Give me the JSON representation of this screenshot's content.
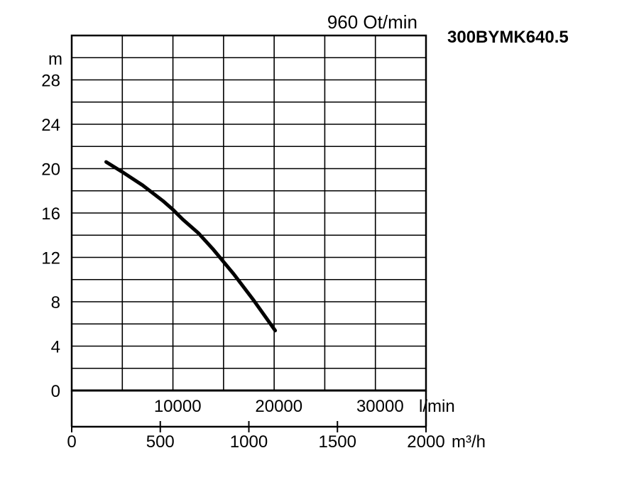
{
  "chart_data": {
    "type": "line",
    "title": "300BYMK640.5",
    "speed_label": "960 Ot/min",
    "y_unit": "m",
    "y_range": [
      0,
      32
    ],
    "y_ticks": [
      0,
      4,
      8,
      12,
      16,
      20,
      24,
      28
    ],
    "x_range_lmin": [
      0,
      35000
    ],
    "x_ticks_lmin": [
      10000,
      20000,
      30000
    ],
    "x_unit_lmin": "l/min",
    "x_range_m3h": [
      0,
      2000
    ],
    "x_ticks_m3h": [
      0,
      500,
      1000,
      1500,
      2000
    ],
    "x_unit_m3h": "m³/h",
    "grid": true,
    "series": [
      {
        "x": [
          3400,
          5000,
          7000,
          9000,
          10000,
          11000,
          12500,
          14000,
          16000,
          18000,
          20100
        ],
        "y": [
          20.6,
          19.7,
          18.5,
          17.1,
          16.3,
          15.4,
          14.2,
          12.7,
          10.5,
          8.1,
          5.4
        ]
      }
    ]
  }
}
